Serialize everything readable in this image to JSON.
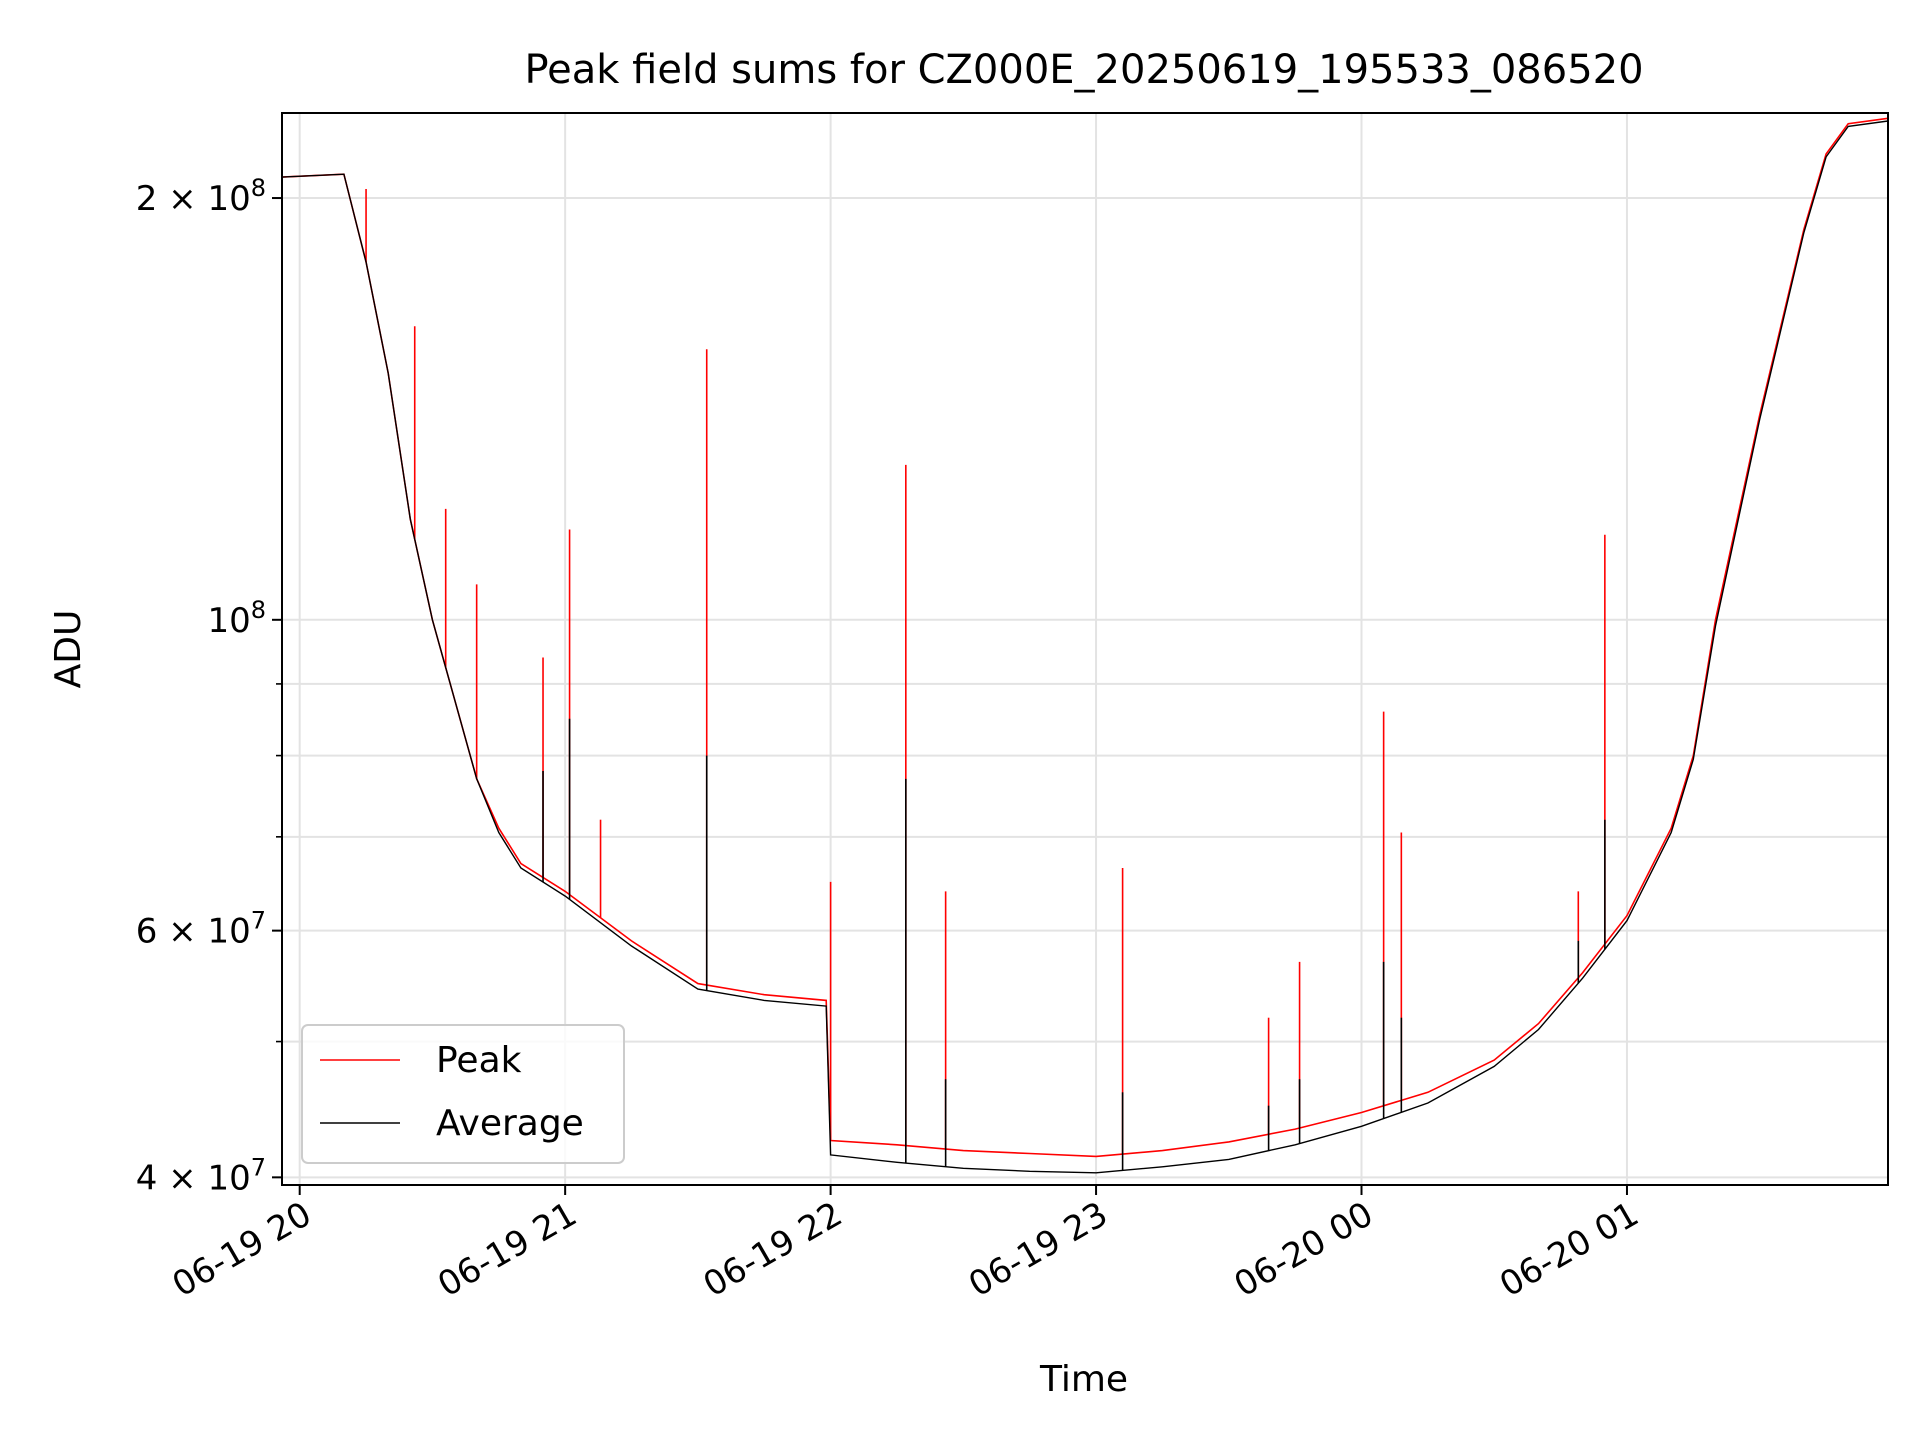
{
  "chart_data": {
    "type": "line",
    "title": "Peak field sums for CZ000E_20250619_195533_086520",
    "xlabel": "Time",
    "ylabel": "ADU",
    "yscale": "log",
    "grid": true,
    "legend_position": "lower-left",
    "xlim": [
      "2025-06-19 19:56",
      "2025-06-20 01:59"
    ],
    "ylim": [
      39500000,
      230000000
    ],
    "x_ticks": [
      {
        "value": "2025-06-19 20:00",
        "label": "06-19 20"
      },
      {
        "value": "2025-06-19 21:00",
        "label": "06-19 21"
      },
      {
        "value": "2025-06-19 22:00",
        "label": "06-19 22"
      },
      {
        "value": "2025-06-19 23:00",
        "label": "06-19 23"
      },
      {
        "value": "2025-06-20 00:00",
        "label": "06-20 00"
      },
      {
        "value": "2025-06-20 01:00",
        "label": "06-20 01"
      }
    ],
    "y_major_ticks": [
      {
        "value": 200000000,
        "label": "2 × 10",
        "sup": "8"
      },
      {
        "value": 100000000,
        "label": "10",
        "sup": "8"
      },
      {
        "value": 60000000,
        "label": "6 × 10",
        "sup": "7"
      },
      {
        "value": 40000000,
        "label": "4 × 10",
        "sup": "7"
      }
    ],
    "y_minor_ticks": [
      50000000,
      70000000,
      80000000,
      90000000
    ],
    "series": [
      {
        "name": "Peak",
        "color": "#ff0000",
        "x": [
          "2025-06-19 19:56",
          "2025-06-19 20:10",
          "2025-06-19 20:15",
          "2025-06-19 20:20",
          "2025-06-19 20:25",
          "2025-06-19 20:30",
          "2025-06-19 20:40",
          "2025-06-19 20:45",
          "2025-06-19 20:50",
          "2025-06-19 21:00",
          "2025-06-19 21:15",
          "2025-06-19 21:30",
          "2025-06-19 21:45",
          "2025-06-19 21:59",
          "2025-06-19 22:00",
          "2025-06-19 22:15",
          "2025-06-19 22:30",
          "2025-06-19 22:45",
          "2025-06-19 23:00",
          "2025-06-19 23:15",
          "2025-06-19 23:30",
          "2025-06-19 23:45",
          "2025-06-20 00:00",
          "2025-06-20 00:15",
          "2025-06-20 00:30",
          "2025-06-20 00:40",
          "2025-06-20 00:50",
          "2025-06-20 01:00",
          "2025-06-20 01:10",
          "2025-06-20 01:15",
          "2025-06-20 01:20",
          "2025-06-20 01:30",
          "2025-06-20 01:40",
          "2025-06-20 01:45",
          "2025-06-20 01:50",
          "2025-06-20 01:59"
        ],
        "y": [
          207000000,
          208000000,
          180000000,
          150000000,
          118000000,
          100000000,
          77000000,
          71000000,
          67000000,
          64000000,
          59000000,
          55000000,
          54000000,
          53500000,
          42500000,
          42200000,
          41800000,
          41600000,
          41400000,
          41800000,
          42400000,
          43300000,
          44500000,
          46000000,
          48500000,
          51500000,
          56000000,
          61500000,
          71000000,
          80000000,
          100000000,
          140000000,
          190000000,
          215000000,
          226000000,
          228000000
        ],
        "spikes": [
          {
            "x": "2025-06-19 20:15",
            "y": 203000000
          },
          {
            "x": "2025-06-19 20:26",
            "y": 162000000
          },
          {
            "x": "2025-06-19 20:33",
            "y": 120000000
          },
          {
            "x": "2025-06-19 20:40",
            "y": 106000000
          },
          {
            "x": "2025-06-19 20:55",
            "y": 94000000
          },
          {
            "x": "2025-06-19 21:01",
            "y": 116000000
          },
          {
            "x": "2025-06-19 21:08",
            "y": 72000000
          },
          {
            "x": "2025-06-19 21:32",
            "y": 156000000
          },
          {
            "x": "2025-06-19 22:00",
            "y": 65000000
          },
          {
            "x": "2025-06-19 22:17",
            "y": 129000000
          },
          {
            "x": "2025-06-19 22:26",
            "y": 64000000
          },
          {
            "x": "2025-06-19 23:06",
            "y": 66500000
          },
          {
            "x": "2025-06-19 23:39",
            "y": 52000000
          },
          {
            "x": "2025-06-19 23:46",
            "y": 57000000
          },
          {
            "x": "2025-06-20 00:05",
            "y": 86000000
          },
          {
            "x": "2025-06-20 00:09",
            "y": 70500000
          },
          {
            "x": "2025-06-20 00:49",
            "y": 64000000
          },
          {
            "x": "2025-06-20 00:55",
            "y": 115000000
          }
        ]
      },
      {
        "name": "Average",
        "color": "#000000",
        "x": [
          "2025-06-19 19:56",
          "2025-06-19 20:10",
          "2025-06-19 20:15",
          "2025-06-19 20:20",
          "2025-06-19 20:25",
          "2025-06-19 20:30",
          "2025-06-19 20:40",
          "2025-06-19 20:45",
          "2025-06-19 20:50",
          "2025-06-19 21:00",
          "2025-06-19 21:15",
          "2025-06-19 21:30",
          "2025-06-19 21:45",
          "2025-06-19 21:59",
          "2025-06-19 22:00",
          "2025-06-19 22:15",
          "2025-06-19 22:30",
          "2025-06-19 22:45",
          "2025-06-19 23:00",
          "2025-06-19 23:15",
          "2025-06-19 23:30",
          "2025-06-19 23:45",
          "2025-06-20 00:00",
          "2025-06-20 00:15",
          "2025-06-20 00:30",
          "2025-06-20 00:40",
          "2025-06-20 00:50",
          "2025-06-20 01:00",
          "2025-06-20 01:10",
          "2025-06-20 01:15",
          "2025-06-20 01:20",
          "2025-06-20 01:30",
          "2025-06-20 01:40",
          "2025-06-20 01:45",
          "2025-06-20 01:50",
          "2025-06-20 01:59"
        ],
        "y": [
          207000000,
          208000000,
          180000000,
          150000000,
          118000000,
          100000000,
          77000000,
          70500000,
          66500000,
          63500000,
          58500000,
          54500000,
          53500000,
          53000000,
          41500000,
          41000000,
          40600000,
          40400000,
          40300000,
          40700000,
          41200000,
          42200000,
          43500000,
          45200000,
          48000000,
          51000000,
          55500000,
          61000000,
          70500000,
          79500000,
          99000000,
          139000000,
          189000000,
          214000000,
          225000000,
          227000000
        ],
        "spikes": [
          {
            "x": "2025-06-19 20:55",
            "y": 78000000
          },
          {
            "x": "2025-06-19 21:01",
            "y": 85000000
          },
          {
            "x": "2025-06-19 21:32",
            "y": 80000000
          },
          {
            "x": "2025-06-19 22:17",
            "y": 77000000
          },
          {
            "x": "2025-06-19 22:26",
            "y": 47000000
          },
          {
            "x": "2025-06-19 23:06",
            "y": 46000000
          },
          {
            "x": "2025-06-19 23:39",
            "y": 45000000
          },
          {
            "x": "2025-06-19 23:46",
            "y": 47000000
          },
          {
            "x": "2025-06-20 00:05",
            "y": 57000000
          },
          {
            "x": "2025-06-20 00:09",
            "y": 52000000
          },
          {
            "x": "2025-06-20 00:49",
            "y": 59000000
          },
          {
            "x": "2025-06-20 00:55",
            "y": 72000000
          }
        ]
      }
    ]
  }
}
